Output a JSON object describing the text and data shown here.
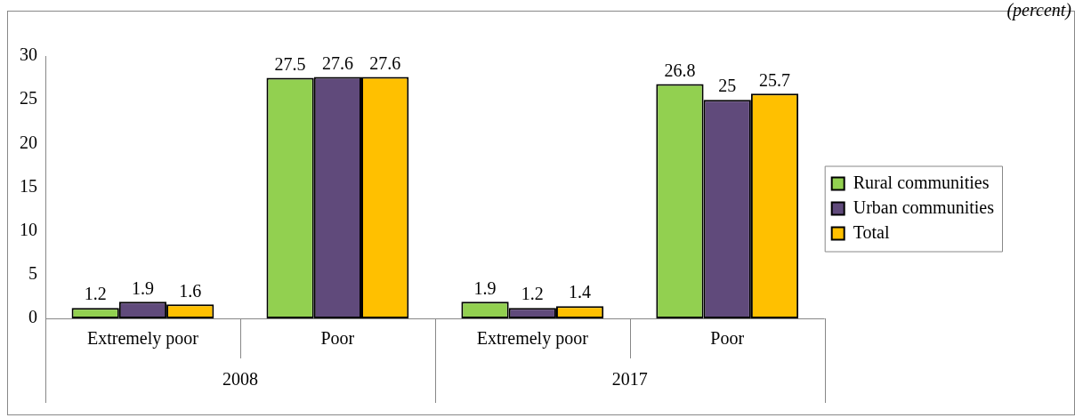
{
  "chart_data": {
    "type": "bar",
    "categories": [
      "Extremely poor",
      "Poor",
      "Extremely poor",
      "Poor"
    ],
    "annotations": [
      "(percent)",
      "2008",
      "2017"
    ],
    "series": [
      {
        "name": "Rural communities",
        "color": "#92d050",
        "values": [
          1.2,
          27.5,
          1.9,
          26.8
        ]
      },
      {
        "name": "Urban communities",
        "color": "#604a7b",
        "values": [
          1.9,
          27.6,
          1.2,
          25
        ]
      },
      {
        "name": "Total",
        "color": "#ffc000",
        "values": [
          1.6,
          27.6,
          1.4,
          25.7
        ]
      }
    ],
    "ylim": [
      0,
      30
    ],
    "yticks": [
      0,
      5,
      10,
      15,
      20,
      25,
      30
    ],
    "grid": false,
    "legend": "right",
    "data_labels": true
  }
}
